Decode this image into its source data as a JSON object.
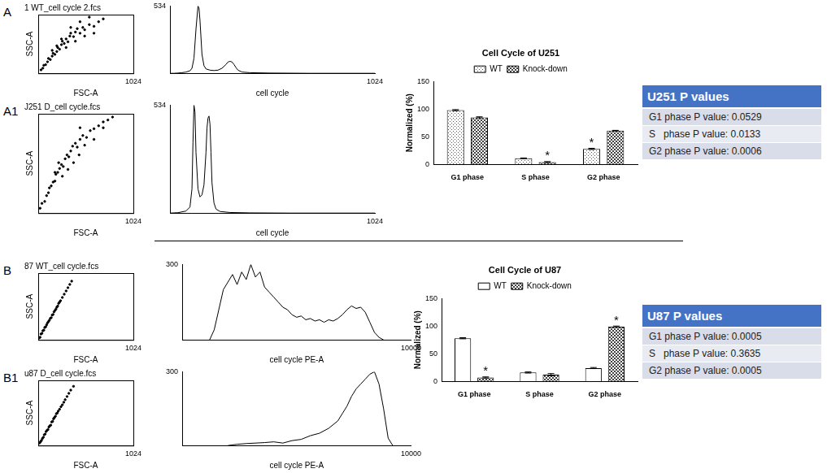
{
  "chart_data": [
    {
      "type": "scatter",
      "panel": "A",
      "title": "1 WT_cell cycle 2.fcs",
      "x_label": "FSC-A",
      "y_label": "SSC-A",
      "x": [
        30,
        50,
        60,
        80,
        100,
        110,
        130,
        150,
        160,
        180,
        200,
        210,
        230,
        250,
        260,
        280,
        300,
        320,
        340,
        350,
        380,
        400,
        420,
        450,
        480,
        500,
        550,
        600,
        650,
        700,
        300,
        250,
        400,
        200,
        500,
        350,
        150,
        450,
        600,
        550
      ],
      "values": [
        60,
        90,
        140,
        150,
        200,
        260,
        240,
        300,
        350,
        330,
        380,
        450,
        420,
        500,
        560,
        520,
        600,
        550,
        650,
        700,
        640,
        720,
        780,
        700,
        800,
        760,
        850,
        820,
        900,
        950,
        450,
        600,
        560,
        480,
        650,
        800,
        400,
        900,
        700,
        980
      ],
      "color": "#000000",
      "xlim": [
        0,
        1024
      ],
      "ylim": [
        0,
        1024
      ],
      "xticks": [
        1024
      ],
      "tick_labels": "x"
    },
    {
      "type": "line",
      "x_label": "cell cycle",
      "x": [
        0,
        20,
        40,
        60,
        80,
        100,
        110,
        120,
        130,
        140,
        145,
        150,
        160,
        170,
        180,
        200,
        220,
        240,
        260,
        280,
        290,
        300,
        310,
        320,
        330,
        340,
        360,
        400,
        500,
        700,
        1024
      ],
      "values": [
        0,
        0,
        2,
        5,
        10,
        20,
        40,
        120,
        350,
        534,
        520,
        420,
        150,
        60,
        35,
        25,
        22,
        25,
        40,
        70,
        90,
        95,
        90,
        70,
        45,
        25,
        10,
        5,
        2,
        0,
        0
      ],
      "color": "#000000",
      "xlim": [
        0,
        1024
      ],
      "ylim": [
        0,
        534
      ],
      "xticks": [
        1024
      ],
      "yticks": [
        534
      ]
    },
    {
      "type": "scatter",
      "panel": "A1",
      "title": "J251 D_cell cycle.fcs",
      "x_label": "FSC-A",
      "y_label": "SSC-A",
      "x": [
        20,
        40,
        70,
        90,
        110,
        120,
        140,
        160,
        180,
        190,
        210,
        230,
        250,
        270,
        290,
        310,
        330,
        350,
        370,
        400,
        420,
        450,
        480,
        520,
        560,
        600,
        650,
        700,
        750,
        800,
        260,
        320,
        380,
        440,
        500,
        220,
        180,
        600,
        700,
        450
      ],
      "values": [
        50,
        100,
        120,
        180,
        210,
        260,
        280,
        320,
        330,
        400,
        420,
        460,
        500,
        480,
        560,
        600,
        580,
        640,
        690,
        720,
        680,
        760,
        800,
        780,
        850,
        870,
        900,
        940,
        960,
        990,
        380,
        450,
        520,
        600,
        700,
        520,
        420,
        760,
        880,
        880
      ],
      "color": "#000000",
      "xlim": [
        0,
        1024
      ],
      "ylim": [
        0,
        1024
      ],
      "xticks": [
        1024
      ],
      "tick_labels": "x"
    },
    {
      "type": "line",
      "x_label": "cell cycle",
      "x": [
        0,
        40,
        80,
        100,
        110,
        115,
        120,
        125,
        130,
        140,
        150,
        160,
        170,
        180,
        185,
        190,
        195,
        200,
        205,
        210,
        220,
        230,
        250,
        300,
        400,
        600,
        1024
      ],
      "values": [
        0,
        2,
        10,
        30,
        120,
        350,
        534,
        500,
        300,
        120,
        80,
        90,
        140,
        300,
        420,
        470,
        480,
        440,
        300,
        150,
        50,
        20,
        8,
        3,
        1,
        0,
        0
      ],
      "color": "#000000",
      "xlim": [
        0,
        1024
      ],
      "ylim": [
        0,
        534
      ],
      "xticks": [
        1024
      ],
      "yticks": [
        534
      ]
    },
    {
      "type": "scatter",
      "panel": "B",
      "title": "87 WT_cell cycle.fcs",
      "x_label": "FSC-A",
      "y_label": "SSC-A",
      "x": [
        10,
        20,
        30,
        40,
        50,
        60,
        70,
        80,
        90,
        100,
        110,
        120,
        130,
        140,
        150,
        160,
        170,
        180,
        190,
        200,
        210,
        220,
        230,
        240,
        260,
        280,
        300,
        320,
        340,
        360
      ],
      "values": [
        30,
        40,
        90,
        100,
        140,
        150,
        190,
        200,
        230,
        260,
        280,
        300,
        330,
        340,
        380,
        390,
        430,
        450,
        470,
        500,
        520,
        560,
        580,
        600,
        650,
        700,
        750,
        800,
        850,
        900
      ],
      "color": "#000000",
      "xlim": [
        0,
        1024
      ],
      "ylim": [
        0,
        1024
      ],
      "xticks": [
        1024
      ],
      "tick_labels": "x"
    },
    {
      "type": "line",
      "x_label": "cell cycle PE-A",
      "x": [
        1200,
        1400,
        1600,
        1800,
        2000,
        2200,
        2400,
        2600,
        2800,
        3000,
        3200,
        3400,
        3600,
        3800,
        4000,
        4200,
        4400,
        4600,
        4800,
        5000,
        5200,
        5400,
        5600,
        5800,
        6000,
        6200,
        6400,
        6600,
        6800,
        7000,
        7200,
        7400,
        7600,
        7800,
        8000,
        8200,
        8400,
        8600,
        8800
      ],
      "values": [
        0,
        40,
        120,
        200,
        230,
        260,
        220,
        270,
        240,
        300,
        250,
        270,
        210,
        190,
        170,
        150,
        130,
        120,
        100,
        90,
        95,
        80,
        85,
        75,
        80,
        70,
        80,
        75,
        85,
        100,
        120,
        135,
        125,
        130,
        110,
        70,
        30,
        10,
        0
      ],
      "color": "#000000",
      "xlim": [
        0,
        10000
      ],
      "ylim": [
        0,
        300
      ],
      "xticks": [
        10000
      ],
      "yticks": [
        300
      ]
    },
    {
      "type": "scatter",
      "panel": "B1",
      "title": "u87 D_cell cycle.fcs",
      "x_label": "FSC-A",
      "y_label": "SSC-A",
      "x": [
        15,
        25,
        35,
        45,
        55,
        65,
        75,
        85,
        95,
        105,
        115,
        125,
        135,
        145,
        155,
        165,
        175,
        185,
        195,
        205,
        215,
        230,
        245,
        260,
        275,
        290,
        310,
        330,
        350,
        380
      ],
      "values": [
        40,
        60,
        80,
        110,
        130,
        170,
        180,
        220,
        240,
        250,
        290,
        310,
        320,
        370,
        380,
        420,
        440,
        460,
        500,
        510,
        540,
        570,
        610,
        640,
        680,
        720,
        770,
        820,
        870,
        930
      ],
      "color": "#000000",
      "xlim": [
        0,
        1024
      ],
      "ylim": [
        0,
        1024
      ],
      "xticks": [
        1024
      ],
      "tick_labels": "x"
    },
    {
      "type": "line",
      "x_label": "cell cycle PE-A",
      "x": [
        2000,
        2400,
        2800,
        3200,
        3600,
        4000,
        4400,
        4800,
        5200,
        5600,
        6000,
        6400,
        6800,
        7000,
        7200,
        7400,
        7600,
        7800,
        8000,
        8200,
        8400,
        8600,
        8800,
        9000,
        9200
      ],
      "values": [
        0,
        5,
        8,
        10,
        12,
        15,
        10,
        20,
        25,
        40,
        50,
        70,
        100,
        130,
        160,
        200,
        230,
        250,
        270,
        290,
        300,
        250,
        150,
        30,
        0
      ],
      "color": "#000000",
      "xlim": [
        0,
        10000
      ],
      "ylim": [
        0,
        300
      ],
      "xticks": [
        10000
      ],
      "yticks": [
        300
      ]
    },
    {
      "type": "bar",
      "title": "Cell Cycle of U251",
      "y_label": "Normalized (%)",
      "categories": [
        "G1 phase",
        "S phase",
        "G2 phase"
      ],
      "series": [
        {
          "name": "WT",
          "color": "#555555",
          "marker": "dots",
          "values": [
            98,
            11,
            28
          ],
          "errors": [
            1,
            0.5,
            1
          ]
        },
        {
          "name": "Knock-down",
          "color": "#444444",
          "marker": "checks",
          "values": [
            85,
            4,
            61
          ],
          "errors": [
            1,
            1,
            0.5
          ]
        }
      ],
      "ylim": [
        0,
        150
      ],
      "yticks": [
        0,
        50,
        100,
        150
      ],
      "legend": "top",
      "annotations": [
        {
          "text": "*",
          "series": "Knock-down",
          "category": "S phase"
        },
        {
          "text": "*",
          "series": "WT",
          "category": "G2 phase"
        }
      ]
    },
    {
      "type": "bar",
      "title": "Cell Cycle of U87",
      "y_label": "Normalized (%)",
      "categories": [
        "G1 phase",
        "S phase",
        "G2 phase"
      ],
      "series": [
        {
          "name": "WT",
          "color": "#ffffff",
          "marker": "none",
          "values": [
            78,
            16,
            24
          ],
          "errors": [
            1,
            1,
            1
          ]
        },
        {
          "name": "Knock-down",
          "color": "#444444",
          "marker": "checks",
          "values": [
            7,
            12,
            99
          ],
          "errors": [
            1,
            2,
            1
          ]
        }
      ],
      "ylim": [
        0,
        150
      ],
      "yticks": [
        0,
        50,
        100,
        150
      ],
      "legend": "top",
      "annotations": [
        {
          "text": "*",
          "series": "Knock-down",
          "category": "G1 phase"
        },
        {
          "text": "*",
          "series": "Knock-down",
          "category": "G2 phase"
        }
      ]
    }
  ],
  "tables": [
    {
      "title": "U251 P values",
      "rows": [
        "G1 phase P value: 0.0529",
        "S   phase P value: 0.0133",
        "G2 phase P value: 0.0006"
      ]
    },
    {
      "title": "U87 P values",
      "rows": [
        "G1 phase P value: 0.0005",
        "S   phase P value: 0.3635",
        "G2 phase P value: 0.0005"
      ]
    }
  ]
}
